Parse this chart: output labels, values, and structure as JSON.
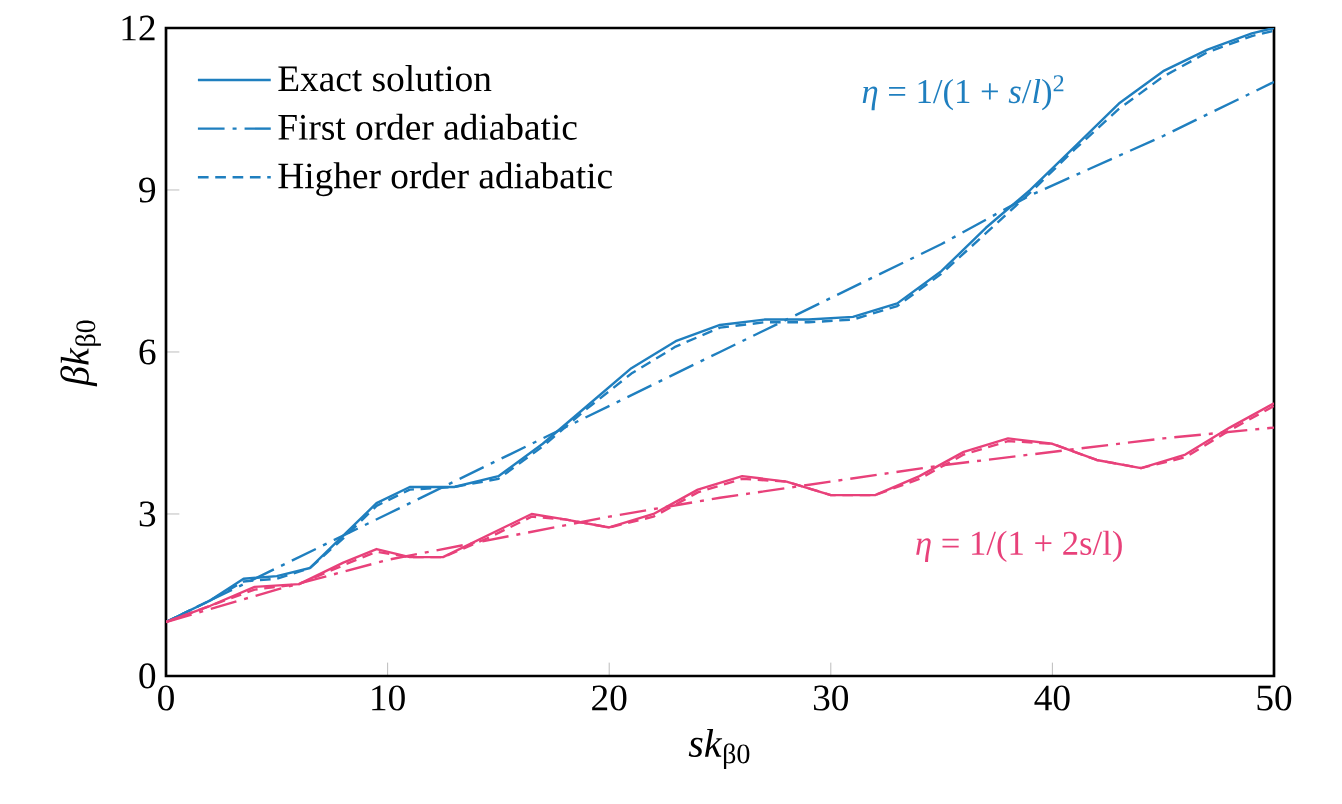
{
  "chart_data": {
    "type": "line",
    "xlabel": "*sk*$_{β0}$",
    "ylabel": "*βk*$_{β0}$",
    "xlim": [
      0,
      50
    ],
    "ylim": [
      0,
      12
    ],
    "xticks": [
      0,
      10,
      20,
      30,
      40,
      50
    ],
    "yticks": [
      0,
      3,
      6,
      9,
      12
    ],
    "grid": false,
    "legend": "top left",
    "annotations": [
      "*η* = 1/(1 + *s*/*l*)$^{2}$",
      "*η* = 1/(1 + 2s/l)"
    ],
    "series": [
      {
        "name": "Exact solution",
        "color": "#1f7fbf",
        "line_style": "solid",
        "x": [
          0,
          2,
          3.5,
          5,
          6.5,
          8,
          9.5,
          11,
          13,
          15,
          17,
          19,
          21,
          23,
          25,
          27,
          29,
          31,
          33,
          35,
          37,
          39,
          41,
          43,
          45,
          47,
          49,
          50
        ],
        "values": [
          1.0,
          1.4,
          1.8,
          1.85,
          2.0,
          2.6,
          3.2,
          3.5,
          3.5,
          3.7,
          4.3,
          5.0,
          5.7,
          6.2,
          6.5,
          6.6,
          6.6,
          6.65,
          6.9,
          7.5,
          8.3,
          9.0,
          9.8,
          10.6,
          11.2,
          11.6,
          11.9,
          12.0
        ]
      },
      {
        "name": "First order adiabatic",
        "color": "#1f7fbf",
        "line_style": "dashdot",
        "x": [
          0,
          5,
          10,
          15,
          20,
          25,
          28,
          30,
          35,
          39,
          45,
          50
        ],
        "values": [
          1.0,
          2.0,
          3.0,
          4.0,
          5.0,
          6.0,
          6.6,
          7.0,
          8.0,
          8.9,
          10.0,
          11.0
        ]
      },
      {
        "name": "Higher order adiabatic",
        "color": "#1f7fbf",
        "line_style": "dashed",
        "x": [
          0,
          2,
          3.5,
          5,
          6.5,
          8,
          9.5,
          11,
          13,
          15,
          17,
          19,
          21,
          23,
          25,
          27,
          29,
          31,
          33,
          35,
          37,
          39,
          41,
          43,
          45,
          47,
          49,
          50
        ],
        "values": [
          1.0,
          1.4,
          1.75,
          1.8,
          2.0,
          2.55,
          3.15,
          3.45,
          3.5,
          3.65,
          4.25,
          4.95,
          5.6,
          6.1,
          6.45,
          6.55,
          6.55,
          6.6,
          6.85,
          7.45,
          8.2,
          8.95,
          9.75,
          10.5,
          11.1,
          11.55,
          11.85,
          11.95
        ]
      },
      {
        "color": "#e8417a",
        "line_style": "solid",
        "x": [
          0,
          2,
          4,
          6,
          8,
          9.5,
          11,
          12.5,
          14.5,
          16.5,
          18,
          20,
          22,
          24,
          26,
          28,
          30,
          32,
          34,
          36,
          38,
          40,
          42,
          44,
          46,
          48,
          50
        ],
        "values": [
          1.0,
          1.3,
          1.65,
          1.7,
          2.1,
          2.35,
          2.2,
          2.2,
          2.6,
          3.0,
          2.9,
          2.75,
          3.0,
          3.45,
          3.7,
          3.6,
          3.35,
          3.35,
          3.7,
          4.15,
          4.4,
          4.3,
          4.0,
          3.85,
          4.1,
          4.6,
          5.05
        ]
      },
      {
        "color": "#e8417a",
        "line_style": "dashdot",
        "x": [
          0,
          5,
          10,
          15,
          20,
          25,
          30,
          35,
          40,
          45,
          50
        ],
        "values": [
          1.0,
          1.6,
          2.15,
          2.55,
          2.95,
          3.3,
          3.6,
          3.9,
          4.15,
          4.4,
          4.6
        ]
      },
      {
        "color": "#e8417a",
        "line_style": "dashed",
        "x": [
          0,
          2,
          4,
          6,
          8,
          9.5,
          11,
          12.5,
          14.5,
          16.5,
          18,
          20,
          22,
          24,
          26,
          28,
          30,
          32,
          34,
          36,
          38,
          40,
          42,
          44,
          46,
          48,
          50
        ],
        "values": [
          1.0,
          1.3,
          1.6,
          1.7,
          2.05,
          2.3,
          2.2,
          2.2,
          2.55,
          2.95,
          2.9,
          2.75,
          2.95,
          3.4,
          3.65,
          3.6,
          3.35,
          3.35,
          3.65,
          4.1,
          4.35,
          4.3,
          4.0,
          3.85,
          4.05,
          4.55,
          5.0
        ]
      }
    ]
  }
}
